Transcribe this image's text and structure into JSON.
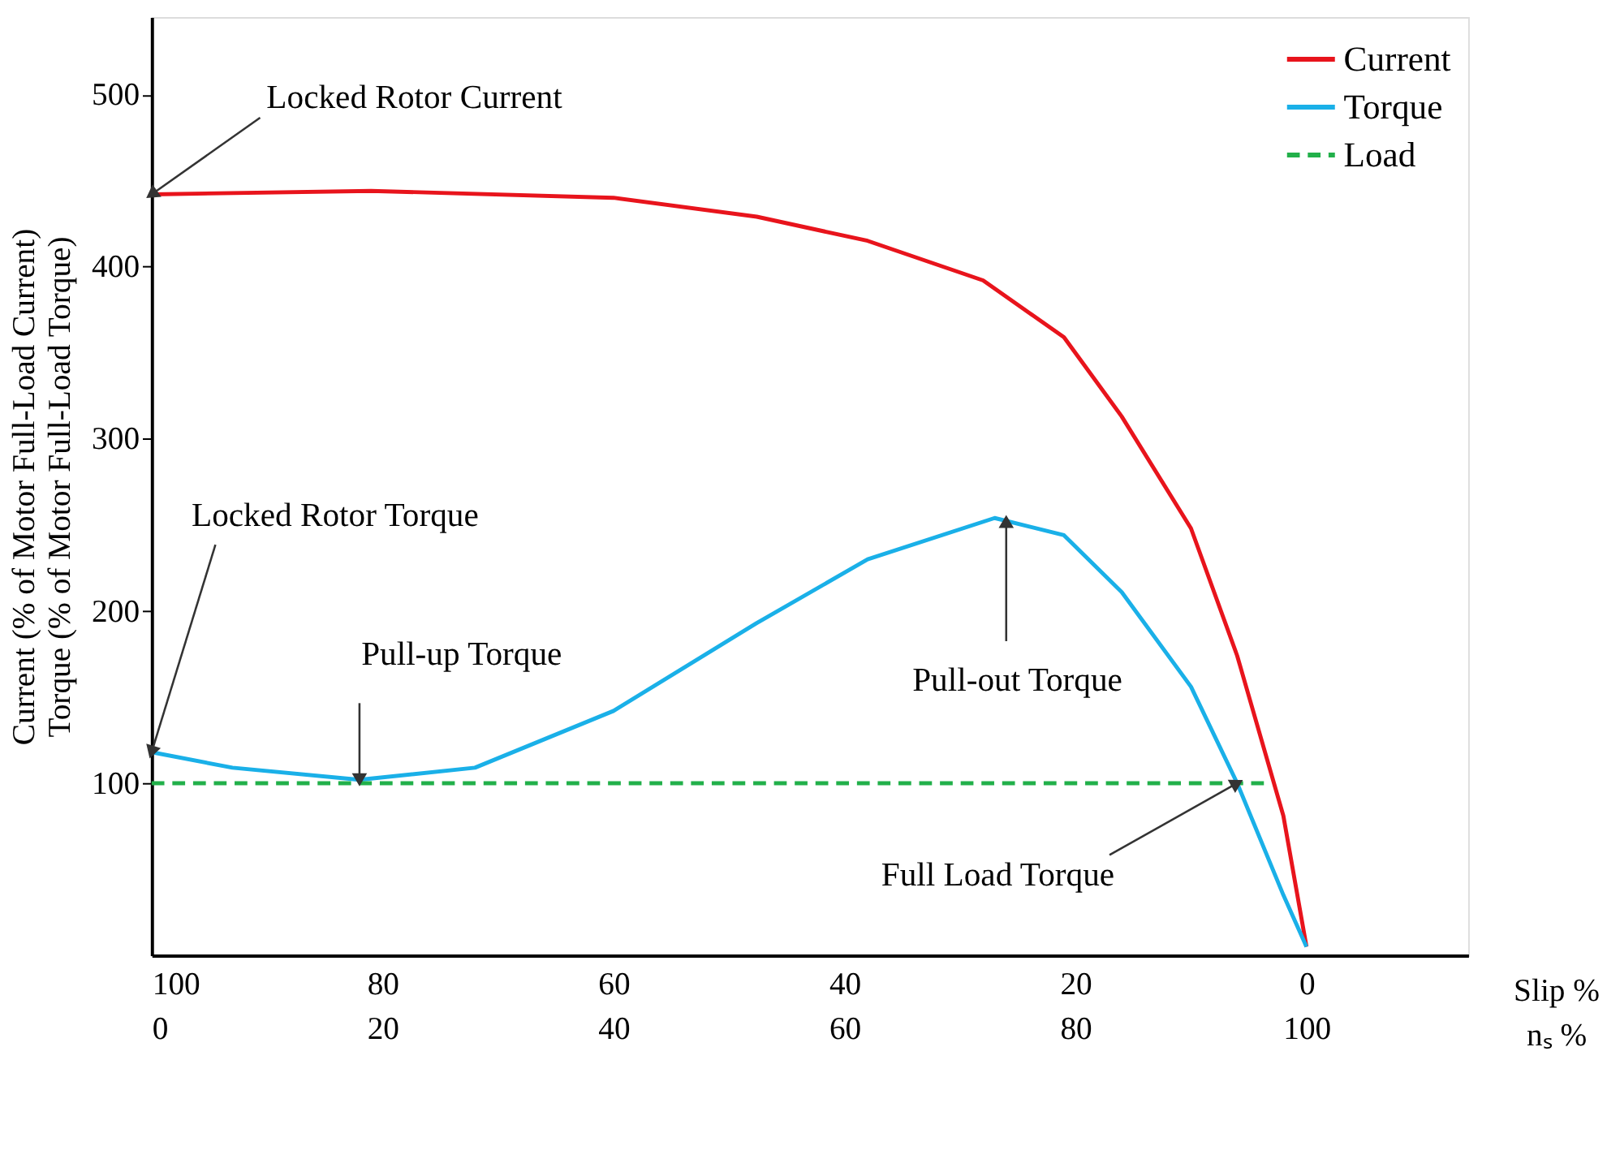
{
  "chart_data": {
    "type": "line",
    "xlabel": "Slip %",
    "x2label": "nₛ %",
    "ylabel": "Current (% of Motor Full-Load Current)\nTorque (% of Motor Full-Load Torque)",
    "xlim": [
      100,
      -14
    ],
    "xticks": [
      100,
      80,
      60,
      40,
      20,
      0
    ],
    "x2lim": [
      0,
      114
    ],
    "x2ticks": [
      0,
      20,
      40,
      60,
      80,
      100
    ],
    "ylim": [
      0,
      545
    ],
    "yticks": [
      100,
      200,
      300,
      400,
      500
    ],
    "grid": false,
    "legend": "top right",
    "series": [
      {
        "name": "Current",
        "color": "#e8141c",
        "line_style": "solid",
        "x": [
          100,
          81,
          60,
          47.6,
          38,
          28,
          21,
          16,
          10,
          6,
          2,
          0
        ],
        "values": [
          442,
          444,
          440,
          429,
          415,
          392,
          359,
          313,
          248,
          174,
          81,
          5
        ]
      },
      {
        "name": "Torque",
        "color": "#1ab0e8",
        "line_style": "solid",
        "x": [
          100,
          93,
          82,
          72,
          60,
          47.6,
          38,
          27,
          21,
          16,
          10,
          6,
          2,
          0
        ],
        "values": [
          118,
          109,
          102,
          109,
          142,
          193,
          230,
          254,
          244,
          211,
          156,
          100,
          35,
          5
        ]
      },
      {
        "name": "Load",
        "color": "#22b04a",
        "line_style": "dashed",
        "x": [
          100,
          3.5
        ],
        "values": [
          100,
          100
        ]
      }
    ],
    "annotations": [
      {
        "text": "Locked Rotor Current",
        "x": 100,
        "y": 442
      },
      {
        "text": "Locked Rotor Torque",
        "x": 100,
        "y": 118
      },
      {
        "text": "Pull-up Torque",
        "x": 82,
        "y": 102
      },
      {
        "text": "Pull-out Torque",
        "x": 26,
        "y": 252
      },
      {
        "text": "Full Load Torque",
        "x": 6,
        "y": 100
      }
    ]
  }
}
